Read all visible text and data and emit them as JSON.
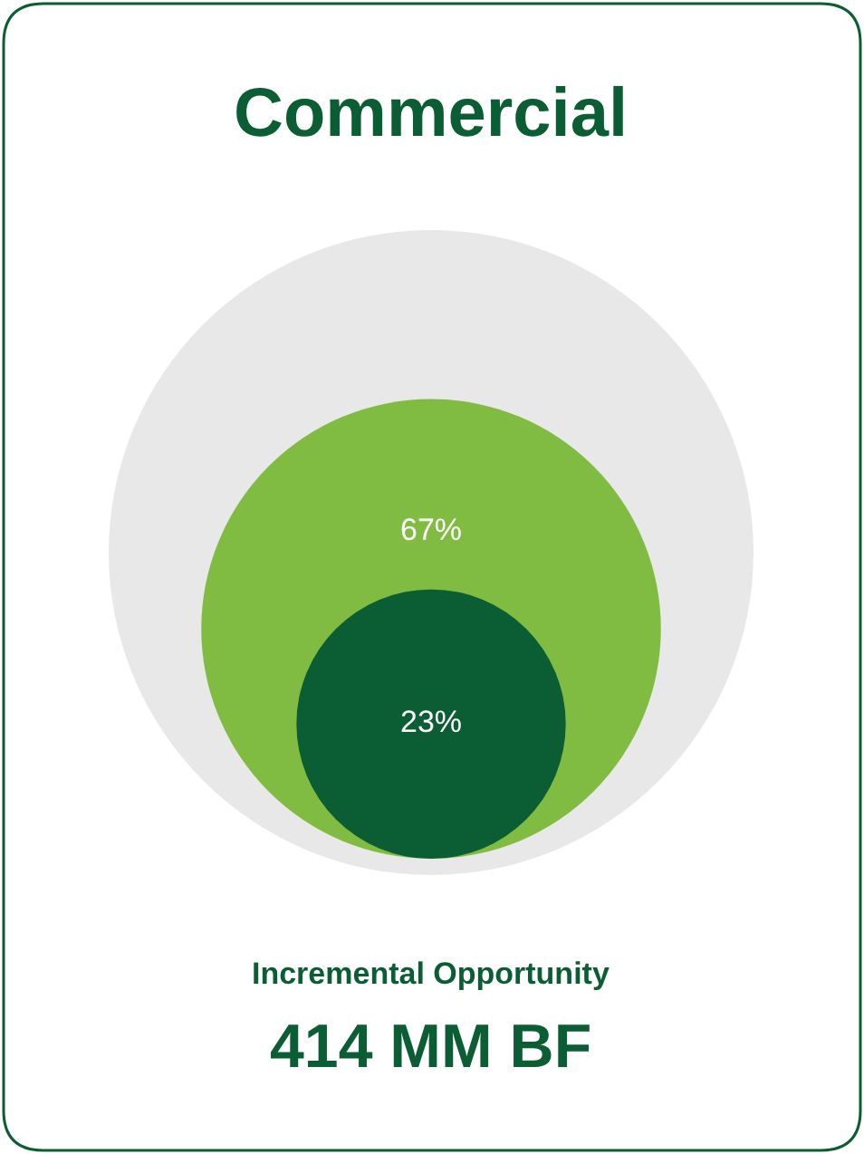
{
  "chart_data": {
    "type": "other",
    "title": "Commercial",
    "categories": [
      null,
      null
    ],
    "values": [
      67,
      23
    ],
    "colors": [
      "#80bc41",
      "#0b5e33"
    ],
    "value_labels": [
      "67%",
      "23%"
    ],
    "annotations": [
      "Incremental Opportunity",
      "414 MM BF"
    ]
  }
}
